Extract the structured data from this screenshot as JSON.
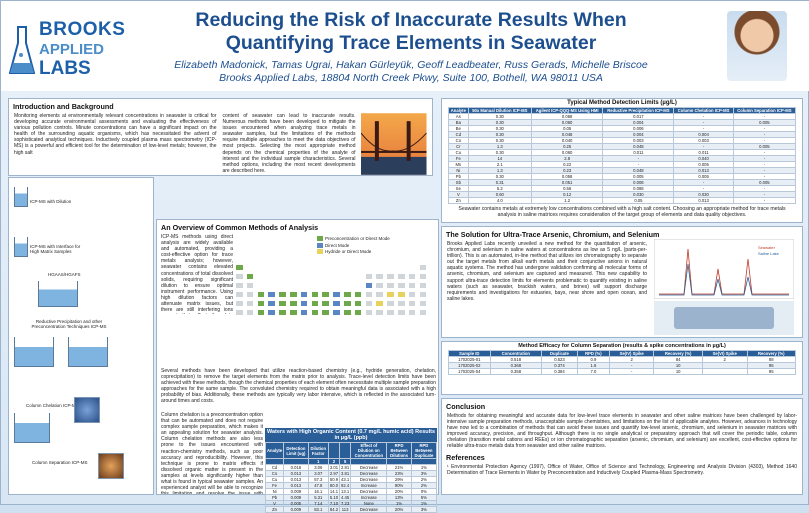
{
  "header": {
    "logo_line1": "BROOKS",
    "logo_line2": "APPLIED",
    "logo_line3": "LABS",
    "title_line1": "Reducing the Risk of Inaccurate Results When",
    "title_line2": "Quantifying Trace Elements in Seawater",
    "authors": "Elizabeth Madonick, Tamas Ugrai, Hakan Gürleyük, Geoff Leadbeater, Russ Gerads, Michelle Briscoe",
    "affiliation": "Brooks Applied Labs, 18804 North Creek Pkwy, Suite 100, Bothell, WA 98011 USA"
  },
  "intro": {
    "heading": "Introduction and Background",
    "col1": "Monitoring elements at environmentally relevant concentrations in seawater is critical for developing accurate environmental assessments and evaluating the effectiveness of various pollution controls. Minute concentrations can have a significant impact on the health of the surrounding aquatic organisms, which has necessitated the advent of sophisticated analytical techniques. Inductively coupled plasma mass spectrometry (ICP-MS) is a powerful and efficient tool for the determination of low-level metals; however, the high salt",
    "col2": "content of seawater can lead to inaccurate results. Numerous methods have been developed to mitigate the issues encountered when analyzing trace metals in seawater samples, but the limitations of the methods require multiple approaches to meet the data objectives of most projects. Selecting the most appropriate method depends on the chemical properties of the analyte of interest and the individual sample characteristics. Several method options, including the most recent developments are described here."
  },
  "overview": {
    "heading": "An Overview of Common Methods of Analysis",
    "p1": "ICP-MS methods using direct analysis are widely available and automated, providing a cost-effective option for trace metals analysis; however, seawater contains elevated concentrations of total dissolved solids, requiring significant dilution to ensure optimal instrument performance. Using high dilution factors can attenuate matrix issues, but there are still interfering ions present that affect the data quality. Also, the resulting elevated detection limits often cannot support the data objectives for water quality monitoring programs such as the Clean Water Act. Several instrument manufacturers have developed a front-end interface for ICP-MS instruments that utilizes an in-line gaseous dilution for aqueous samples, but these methods may not be sufficient to support low-level detection limit requirements.",
    "p2": "Several methods have been developed that utilize reaction-based chemistry (e.g., hydride generation, chelation, coprecipitation) to remove the target elements from the matrix prior to analysis. Trace-level detection limits have been achieved with these methods, though the chemical properties of each element often necessitate multiple sample preparation approaches for the same sample. The convoluted chemistry required to obtain meaningful data is associated with a high probability of bias. Additionally, these methods are typically very labor intensive, which is reflected in the associated turn-around times and costs.",
    "p3": "Column chelation is a preconcentration option that can be automated and does not require complex sample preparation, which makes it an appealing solution for seawater analysis. Column chelation methods are also less prone to the issues encountered with reaction-chemistry methods, such as poor accuracy and reproducibility. However, this technique is prone to matrix effects if dissolved organic matter is present in the samples at levels significantly higher than what is found in typical seawater samples. An experienced analyst will be able to recognize this limitation and resolve the issue with minimal investigation. The list of elements compatible with column chelation ICP-MS includes many of the cationic transition metals and rare earth elements, but most anionic metals (such as arsenic, chromium, and selenium) cannot be supported by this method.",
    "legend": [
      "Preconcentration or Direct Mode",
      "Direct Mode",
      "Hydride or Direct Mode"
    ]
  },
  "left_images": [
    "ICP-MS with Dilution",
    "ICP-MS with Interface for High Matrix Samples",
    "HGAAS/HGAFS",
    "Reductive Precipitation and other Preconcentration Techniques ICP-MS",
    "Column Chelation ICP-MS",
    "Column Separation ICP-MS"
  ],
  "mdl": {
    "title": "Typical Method Detection Limits (µg/L)",
    "headers": [
      "Analyte",
      "50x Manual Dilution ICP-MS",
      "Agilent ICP-QQQ-MS Using HMI",
      "Reductive Precipitation ICP-MS",
      "Column Chelation ICP-MS",
      "Column Separation ICP-MS"
    ],
    "rows": [
      [
        "As",
        "0.30",
        "0.068",
        "0.017",
        "-",
        "-"
      ],
      [
        "Ba",
        "0.30",
        "0.060",
        "0.004",
        "-",
        "0.005"
      ],
      [
        "Be",
        "0.30",
        "0.05",
        "0.006",
        "-",
        "-"
      ],
      [
        "Cd",
        "0.30",
        "0.048",
        "0.004",
        "0.004",
        "-"
      ],
      [
        "Co",
        "0.30",
        "0.040",
        "0.003",
        "0.003",
        "-"
      ],
      [
        "Cr",
        "1.3",
        "0.25",
        "0.048",
        "-",
        "0.005"
      ],
      [
        "Cu",
        "0.30",
        "0.060",
        "0.011",
        "0.011",
        "-"
      ],
      [
        "Fe",
        "14",
        "2.8",
        "-",
        "0.040",
        "-"
      ],
      [
        "Mn",
        "2.1",
        "0.22",
        "-",
        "0.005",
        "-"
      ],
      [
        "Ni",
        "1.3",
        "0.23",
        "0.048",
        "0.013",
        "-"
      ],
      [
        "Pb",
        "0.30",
        "0.058",
        "0.005",
        "0.005",
        "-"
      ],
      [
        "Sb",
        "0.31",
        "0.051",
        "0.008",
        "-",
        "0.005"
      ],
      [
        "Se",
        "5.2",
        "0.56",
        "0.088",
        "-",
        "-"
      ],
      [
        "V",
        "0.60",
        "0.12",
        "0.030",
        "0.030",
        "-"
      ],
      [
        "Zn",
        "4.0",
        "1.2",
        "0.05",
        "0.013",
        "-"
      ]
    ],
    "caption": "Seawater contains metals at extremely low concentrations combined with a high salt content. Choosing an appropriate method for trace metals analysis in saline matrices requires consideration of the target group of elements and data quality objectives."
  },
  "solution": {
    "heading": "The Solution for Ultra-Trace Arsenic, Chromium, and Selenium",
    "text": "Brooks Applied Labs recently unveiled a new method for the quantitation of arsenic, chromium, and selenium in saline waters at concentrations as low as 5 ng/L (parts-per-trillion). This is an automated, in-line method that utilizes ion chromatography to separate out the target metals from alkali earth metals and their conjunctive anions in natural aquatic systems. The method has undergone validation confirming all molecular forms of arsenic, chromium, and selenium are captured and measured. This new capability to support ultra-trace detection limits for elements problematic to quantify existing in saline waters (such as seawater, brackish waters, and brines) will support discharge requirements and investigations for estuaries, bays, near shore and open ocean, and saline lakes.",
    "chart_legend": [
      "Seawater",
      "Saline Lake"
    ]
  },
  "spike": {
    "title": "Method Efficacy for Column Separation (results & spike concentrations in µg/L)",
    "headers": [
      "Sample ID",
      "Concentration",
      "Duplicate",
      "RPD (%)",
      "Se(IV) Spike",
      "Recovery (%)",
      "Se(VI) Spike",
      "Recovery (%)"
    ],
    "rows": [
      [
        "1702025-01",
        "0.518",
        "0.523",
        "0.9",
        "2",
        "84",
        "2",
        "88"
      ],
      [
        "1702025-02",
        "0.368",
        "0.374",
        "1.6",
        "-",
        "10",
        "",
        "95"
      ],
      [
        "1702025-04",
        "0.358",
        "0.384",
        "7.0",
        "-",
        "10",
        "",
        "95"
      ]
    ]
  },
  "hoc": {
    "title": "Waters with High Organic Content (0.7 mg/L humic acid) Results in µg/L (ppb)",
    "headers": [
      "Analyte",
      "Detection Limit (ug)",
      "Dilution Factor",
      "",
      "",
      "Effect of Dilution on Concentration",
      "RPD Between Dilutions",
      "RPD Between Duplicate"
    ],
    "subheaders": [
      "",
      "",
      "1",
      "2",
      "5",
      "",
      "",
      ""
    ],
    "rows": [
      [
        "Cd",
        "0.016",
        "3.06",
        "3.01",
        "2.81",
        "Decrease",
        "21%",
        "1%"
      ],
      [
        "Co",
        "0.013",
        "3.07",
        "2.97",
        "3.81",
        "Decrease",
        "23%",
        "3%"
      ],
      [
        "Cu",
        "0.013",
        "57.3",
        "50.9",
        "43.1",
        "Decrease",
        "29%",
        "2%"
      ],
      [
        "Fe",
        "0.013",
        "47.8",
        "80.0",
        "92.4",
        "Increase",
        "90%",
        "2%"
      ],
      [
        "Ni",
        "0.009",
        "16.1",
        "14.1",
        "13.1",
        "Decrease",
        "20%",
        "0%"
      ],
      [
        "Pb",
        "0.009",
        "5.31",
        "5.10",
        "4.45",
        "Increase",
        "13%",
        "5%"
      ],
      [
        "V",
        "0.005",
        "7.14",
        "7.10",
        "7.23",
        "None",
        "1%",
        "1%"
      ],
      [
        "Zn",
        "0.009",
        "83.1",
        "84.2",
        "113",
        "Decrease",
        "20%",
        "3%"
      ]
    ]
  },
  "conclusion": {
    "heading": "Conclusion",
    "text": "Methods for obtaining meaningful and accurate data for low-level trace elements in seawater and other saline matrices have been challenged by labor-intensive sample preparation methods, unacceptable sample chemistries, and limitations on the list of applicable analytes. However, advances in technology have now led to a combination of methods that can avoid these issues and quantify low-level arsenic, chromium, and selenium in seawater matrices with improved accuracy, precision, and throughput. Although there is no single analytical or preparatory approach that will cover the periodic table, column chelation (transition metal cations and REEs) or ion chromatographic separation (arsenic, chromium, and selenium) are excellent, cost-effective options for reliable ultra-trace metals data from seawater and other saline matrices."
  },
  "references": {
    "heading": "References",
    "text": "¹ Environmental Protection Agency (1997), Office of Water, Office of Science and Technology, Engineering and Analysis Division (4303), Method 1640 Determination of Trace Elements in Water by Preconcentration and Inductively Coupled Plasma-Mass Spectrometry."
  },
  "colors": {
    "title": "#1d4f8f",
    "table_header": "#2a5e98",
    "preconc": "#6ea84a",
    "direct": "#5b86c4",
    "hydride": "#e7d35c"
  }
}
